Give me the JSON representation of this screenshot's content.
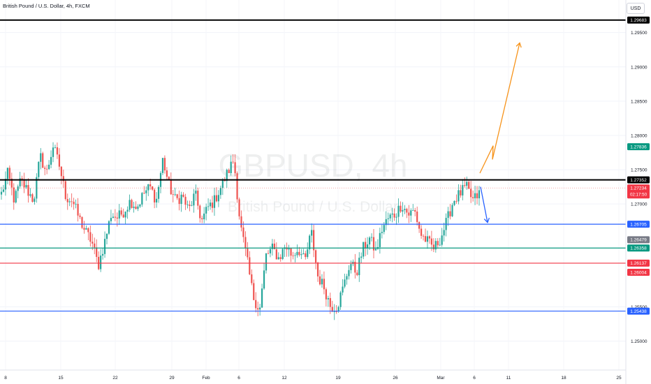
{
  "header": {
    "title": "British Pound / U.S. Dollar, 4h, FXCM",
    "currency_button": "USD"
  },
  "watermark": {
    "symbol": "GBPUSD, 4h",
    "name": "British Pound / U.S. Dollar"
  },
  "colors": {
    "up": "#26a69a",
    "down": "#ef5350",
    "black_line": "#000000",
    "blue_line": "#2962ff",
    "green_line": "#089981",
    "red_line": "#f23645",
    "orange_arrow": "#f7931a",
    "blue_arrow": "#2962ff"
  },
  "chart_data": {
    "type": "candlestick",
    "ylim": [
      1.2465,
      1.2995
    ],
    "y_ticks": [
      "1.25000",
      "1.25500",
      "1.27000",
      "1.27500",
      "1.28000",
      "1.28500",
      "1.29000",
      "1.29500"
    ],
    "x_ticks": [
      "8",
      "15",
      "22",
      "29",
      "Feb",
      "6",
      "12",
      "19",
      "26",
      "Mar",
      "6",
      "11",
      "18",
      "25"
    ],
    "horizontal_lines": [
      {
        "price": 1.29683,
        "label": "1.29683",
        "color": "#000000",
        "width": 2
      },
      {
        "price": 1.27352,
        "label": "1.27352",
        "color": "#000000",
        "width": 2
      },
      {
        "price": 1.26705,
        "label": "1.26705",
        "color": "#2962ff",
        "width": 1.2
      },
      {
        "price": 1.26358,
        "label": "1.26358",
        "color": "#089981",
        "width": 1.2
      },
      {
        "price": 1.26137,
        "label": "1.26137",
        "color": "#f23645",
        "width": 1.2
      },
      {
        "price": 1.25438,
        "label": "1.25438",
        "color": "#2962ff",
        "width": 1.2
      }
    ],
    "price_badges": [
      {
        "price": 1.27836,
        "label": "1.27836",
        "bg": "#089981"
      },
      {
        "price": 1.27234,
        "label": "1.27234",
        "sublabel": "02:17:50",
        "bg": "#f23645"
      },
      {
        "price": 1.26479,
        "label": "1.26479",
        "bg": "#787b86"
      },
      {
        "price": 1.26004,
        "label": "1.26004",
        "bg": "#f23645"
      }
    ],
    "current_price": 1.27234,
    "anchor_prices": [
      1.2715,
      1.2745,
      1.2705,
      1.2735,
      1.272,
      1.2705,
      1.277,
      1.2745,
      1.2785,
      1.2755,
      1.271,
      1.2705,
      1.268,
      1.266,
      1.2645,
      1.261,
      1.2645,
      1.2685,
      1.268,
      1.269,
      1.2705,
      1.2695,
      1.2715,
      1.2725,
      1.2705,
      1.2765,
      1.2725,
      1.2705,
      1.2712,
      1.269,
      1.2715,
      1.2675,
      1.2695,
      1.2705,
      1.2725,
      1.2745,
      1.2765,
      1.267,
      1.262,
      1.2565,
      1.2545,
      1.2625,
      1.2635,
      1.262,
      1.264,
      1.2625,
      1.2635,
      1.2615,
      1.266,
      1.2595,
      1.2578,
      1.255,
      1.255,
      1.258,
      1.2615,
      1.26,
      1.2635,
      1.265,
      1.263,
      1.2665,
      1.268,
      1.2685,
      1.27,
      1.2685,
      1.269,
      1.2655,
      1.2645,
      1.2635,
      1.265,
      1.2675,
      1.2705,
      1.2715,
      1.2725,
      1.2705,
      1.2715
    ],
    "projection_arrows": [
      {
        "color": "#f7931a",
        "points": [
          [
            1.2745
          ],
          [
            1.2785
          ],
          [
            1.2765
          ],
          [
            1.2935
          ]
        ]
      },
      {
        "color": "#2962ff",
        "points": [
          [
            1.2725
          ],
          [
            1.2673
          ]
        ]
      }
    ]
  }
}
